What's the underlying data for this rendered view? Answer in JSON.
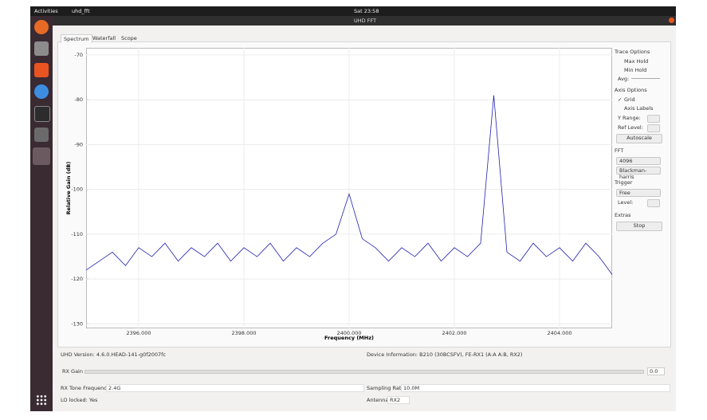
{
  "top_bar": {
    "activities": "Activities",
    "app_menu": "uhd_fft",
    "clock": "Sat 23:58"
  },
  "window": {
    "title": "UHD FFT"
  },
  "tabs": [
    "Spectrum",
    "Waterfall",
    "Scope"
  ],
  "sidebar": {
    "trace_options": "Trace Options",
    "max_hold": "Max Hold",
    "min_hold": "Min Hold",
    "avg": "Avg:",
    "axis_options": "Axis Options",
    "grid": "Grid",
    "axis_labels": "Axis Labels",
    "y_range": "Y Range:",
    "ref_level": "Ref Level:",
    "autoscale": "Autoscale",
    "fft": "FFT",
    "fft_size": "4096",
    "window_fn": "Blackman-harris",
    "trigger": "Trigger",
    "trigger_mode": "Free",
    "level": "Level:",
    "extras": "Extras",
    "stop": "Stop"
  },
  "chart_data": {
    "type": "line",
    "y_label": "Relative Gain (dB)",
    "x_label": "Frequency (MHz)",
    "color": "#2020b0",
    "grid": true,
    "xlim": [
      2395,
      2405
    ],
    "ylim": [
      -131,
      -68.4
    ],
    "xticks": [
      {
        "value": 2396,
        "label": "2396.000"
      },
      {
        "value": 2398,
        "label": "2398.000"
      },
      {
        "value": 2400,
        "label": "2400.000"
      },
      {
        "value": 2402,
        "label": "2402.000"
      },
      {
        "value": 2404,
        "label": "2404.000"
      }
    ],
    "yticks": [
      -70,
      -80,
      -90,
      -100,
      -110,
      -120,
      -130
    ],
    "x": [
      2395,
      2395.25,
      2395.5,
      2395.75,
      2396,
      2396.25,
      2396.5,
      2396.75,
      2397,
      2397.25,
      2397.5,
      2397.75,
      2398,
      2398.25,
      2398.5,
      2398.75,
      2399,
      2399.25,
      2399.5,
      2399.75,
      2400,
      2400.25,
      2400.5,
      2400.75,
      2401,
      2401.25,
      2401.5,
      2401.75,
      2402,
      2402.25,
      2402.5,
      2402.75,
      2403,
      2403.25,
      2403.5,
      2403.75,
      2404,
      2404.25,
      2404.5,
      2404.75,
      2405
    ],
    "values": [
      -118,
      -116,
      -114,
      -117,
      -113,
      -115,
      -112,
      -116,
      -113,
      -115,
      -112,
      -116,
      -113,
      -115,
      -112,
      -116,
      -113,
      -115,
      -112,
      -110,
      -101,
      -111,
      -113,
      -116,
      -113,
      -115,
      -112,
      -116,
      -113,
      -115,
      -112,
      -79,
      -114,
      -116,
      -112,
      -115,
      -113,
      -116,
      -112,
      -115,
      -119
    ]
  },
  "status": {
    "uhd_version": "UHD Version: 4.6.0.HEAD-141-g0f2007fc",
    "device_info": "Device Information: B210 (30BCSFV), FE-RX1 (A:A A:B, RX2)",
    "rx_gain": "RX Gain",
    "rx_gain_value": "0.0",
    "tone_label": "RX Tone Frequency):",
    "tone_value": "2.4G",
    "rate_label": "Sampling Rate:",
    "rate_value": "10.0M",
    "lo_locked": "LO locked: Yes",
    "antenna_label": "Antenna:",
    "antenna_value": "RX2"
  }
}
